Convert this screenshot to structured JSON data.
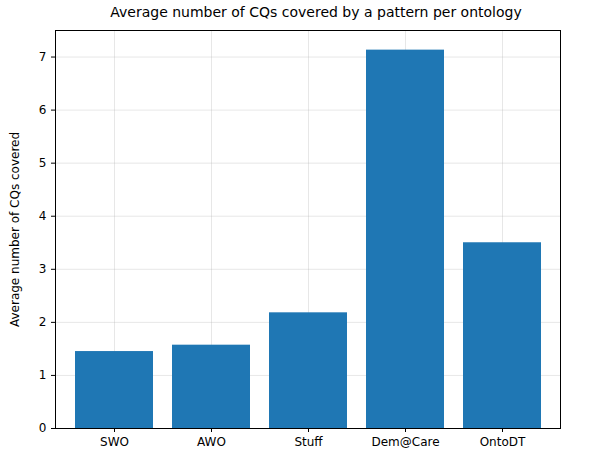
{
  "chart_data": {
    "type": "bar",
    "title": "Average number of CQs covered by a pattern per ontology",
    "y_label": "Average number of CQs covered",
    "categories": [
      "SWO",
      "AWO",
      "Stuff",
      "Dem@Care",
      "OntoDT"
    ],
    "values": [
      1.45,
      1.57,
      2.18,
      7.13,
      3.5
    ],
    "color": "#1f77b4",
    "ylim": [
      0,
      7.5
    ],
    "yticks": [
      0,
      1,
      2,
      3,
      4,
      5,
      6,
      7
    ],
    "grid": true
  }
}
